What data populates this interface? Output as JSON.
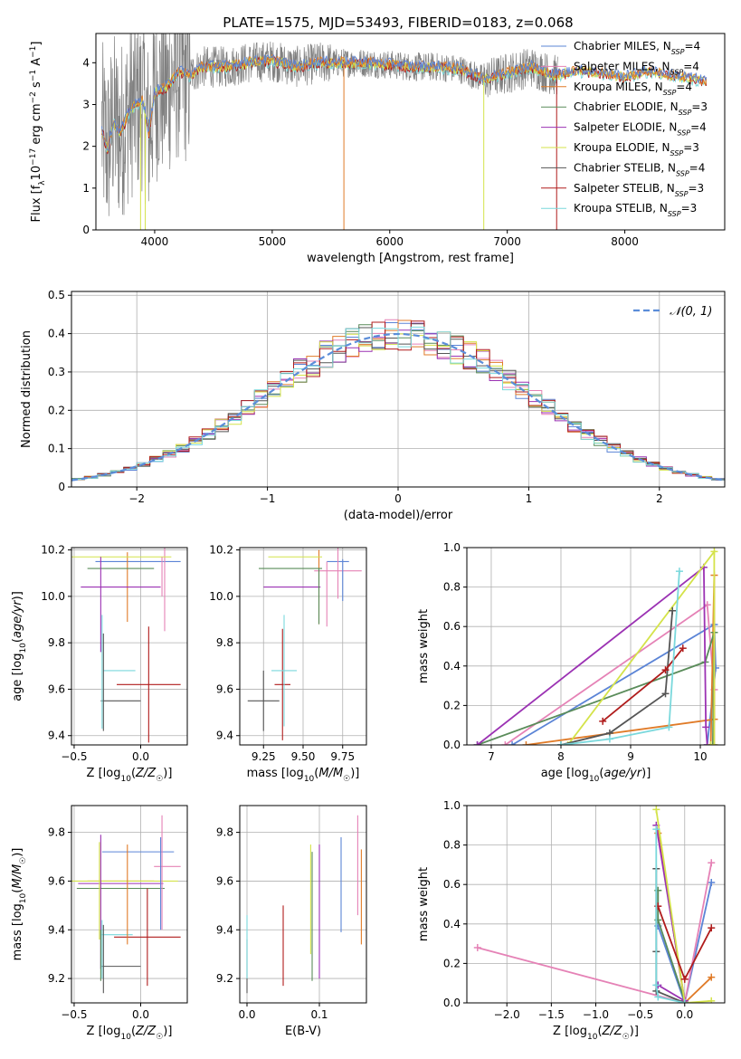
{
  "figure": {
    "title": "PLATE=1575, MJD=53493, FIBERID=0183, z=0.068"
  },
  "colors": {
    "Chabrier MILES": "#5b84d6",
    "Salpeter MILES": "#e582b6",
    "Kroupa MILES": "#e07b28",
    "Chabrier ELODIE": "#5a8c5a",
    "Salpeter ELODIE": "#9b32b3",
    "Kroupa ELODIE": "#d4e34a",
    "Chabrier STELIB": "#555555",
    "Salpeter STELIB": "#b01c1c",
    "Kroupa STELIB": "#7ad8dc",
    "data": "#808080",
    "gaussian": "#5b8dd9"
  },
  "chart_data": [
    {
      "id": "spectrum",
      "type": "line",
      "title": "PLATE=1575, MJD=53493, FIBERID=0183, z=0.068",
      "xlabel": "wavelength [Angstrom, rest frame]",
      "ylabel": "Flux [f_λ 10^-17 erg cm^-2 s^-1 A^-1]",
      "xlim": [
        3500,
        8850
      ],
      "ylim": [
        0,
        4.7
      ],
      "xticks": [
        4000,
        5000,
        6000,
        7000,
        8000
      ],
      "yticks": [
        0,
        1,
        2,
        3,
        4
      ],
      "legend_position": "top-right",
      "legend": [
        {
          "label": "Chabrier MILES, N",
          "sub": "SSP",
          "n": "=4",
          "model": "Chabrier MILES"
        },
        {
          "label": "Salpeter MILES, N",
          "sub": "SSP",
          "n": "=4",
          "model": "Salpeter MILES"
        },
        {
          "label": "Kroupa MILES, N",
          "sub": "SSP",
          "n": "=4",
          "model": "Kroupa MILES"
        },
        {
          "label": "Chabrier ELODIE, N",
          "sub": "SSP",
          "n": "=3",
          "model": "Chabrier ELODIE"
        },
        {
          "label": "Salpeter ELODIE, N",
          "sub": "SSP",
          "n": "=4",
          "model": "Salpeter ELODIE"
        },
        {
          "label": "Kroupa ELODIE, N",
          "sub": "SSP",
          "n": "=3",
          "model": "Kroupa ELODIE"
        },
        {
          "label": "Chabrier STELIB, N",
          "sub": "SSP",
          "n": "=4",
          "model": "Chabrier STELIB"
        },
        {
          "label": "Salpeter STELIB, N",
          "sub": "SSP",
          "n": "=3",
          "model": "Salpeter STELIB"
        },
        {
          "label": "Kroupa STELIB, N",
          "sub": "SSP",
          "n": "=3",
          "model": "Kroupa STELIB"
        }
      ],
      "continuum": {
        "x": [
          3550,
          3600,
          3650,
          3700,
          3800,
          3900,
          3950,
          4000,
          4100,
          4200,
          4300,
          4400,
          4600,
          4800,
          5000,
          5200,
          5400,
          5600,
          5800,
          6000,
          6200,
          6400,
          6600,
          6800,
          7000,
          7200,
          7400,
          7600,
          7800,
          8000,
          8200,
          8400,
          8600,
          8700
        ],
        "y": [
          2.4,
          1.9,
          2.6,
          2.3,
          2.9,
          3.1,
          2.3,
          3.3,
          3.4,
          3.8,
          3.7,
          3.9,
          3.9,
          4.0,
          4.05,
          3.9,
          4.0,
          4.0,
          4.0,
          3.95,
          3.9,
          3.9,
          3.85,
          3.6,
          3.75,
          3.9,
          3.7,
          3.8,
          3.75,
          3.65,
          3.8,
          3.7,
          3.6,
          3.55
        ]
      }
    },
    {
      "id": "residuals",
      "type": "area",
      "xlabel": "(data-model)/error",
      "ylabel": "Normed distribution",
      "xlim": [
        -2.5,
        2.5
      ],
      "ylim": [
        0,
        0.51
      ],
      "xticks": [
        -2,
        -1,
        0,
        1,
        2
      ],
      "yticks": [
        0,
        0.1,
        0.2,
        0.3,
        0.4,
        0.5
      ],
      "legend": [
        "𝒩(0, 1)"
      ],
      "legend_position": "top-right",
      "bin_width": 0.1,
      "bin_start": -2.5,
      "gaussian": {
        "mean": 0,
        "sigma": 1
      }
    },
    {
      "id": "age-vs-Z",
      "type": "scatter",
      "xlabel": "Z [log10(Z/Z☉)]",
      "ylabel": "age [log10(age/yr)]",
      "xlim": [
        -0.52,
        0.35
      ],
      "ylim": [
        9.36,
        10.21
      ],
      "xticks": [
        -0.5,
        0.0
      ],
      "xticklabels": [
        "−0.5",
        "0.0"
      ],
      "yticks": [
        9.4,
        9.6,
        9.8,
        10.0,
        10.2
      ],
      "yticklabels": [
        "9.4",
        "9.6",
        "9.8",
        "10.0",
        "10.2"
      ],
      "errorbars": [
        {
          "model": "Chabrier MILES",
          "x": -0.02,
          "xerr": 0.32,
          "y": 10.15,
          "yerr": 0.0
        },
        {
          "model": "Salpeter MILES",
          "x": 0.18,
          "xerr": 0.0,
          "y": 10.05,
          "yerr": 0.2
        },
        {
          "model": "Kroupa MILES",
          "x": -0.1,
          "xerr": 0.0,
          "y": 10.04,
          "yerr": 0.15
        },
        {
          "model": "Chabrier ELODIE",
          "x": -0.15,
          "xerr": 0.25,
          "y": 10.12,
          "yerr": 0.0
        },
        {
          "model": "Salpeter ELODIE",
          "x": -0.15,
          "xerr": 0.3,
          "y": 10.04,
          "yerr": 0.0
        },
        {
          "model": "Kroupa ELODIE",
          "x": -0.15,
          "xerr": 0.38,
          "y": 10.17,
          "yerr": 0.0
        },
        {
          "model": "Chabrier STELIB",
          "x": -0.15,
          "xerr": 0.15,
          "y": 9.55,
          "yerr": 0.0
        },
        {
          "model": "Salpeter STELIB",
          "x": 0.06,
          "xerr": 0.24,
          "y": 9.62,
          "yerr": 0.25
        },
        {
          "model": "Kroupa STELIB",
          "x": -0.16,
          "xerr": 0.12,
          "y": 9.68,
          "yerr": 0.0
        }
      ],
      "vbars": [
        {
          "model": "Salpeter ELODIE",
          "x": -0.3,
          "y0": 9.76,
          "y1": 10.17
        },
        {
          "model": "Kroupa STELIB",
          "x": -0.29,
          "y0": 9.43,
          "y1": 9.92
        },
        {
          "model": "Chabrier STELIB",
          "x": -0.28,
          "y0": 9.42,
          "y1": 9.84
        },
        {
          "model": "Salpeter MILES",
          "x": 0.16,
          "y0": 10.0,
          "y1": 10.17
        }
      ]
    },
    {
      "id": "age-vs-mass",
      "type": "scatter",
      "xlabel": "mass [log10(M/M☉)]",
      "ylabel": "",
      "xlim": [
        9.1,
        9.9
      ],
      "ylim": [
        9.36,
        10.21
      ],
      "xticks": [
        9.25,
        9.5,
        9.75
      ],
      "xticklabels": [
        "9.25",
        "9.50",
        "9.75"
      ],
      "yticks": [
        9.4,
        9.6,
        9.8,
        10.0,
        10.2
      ],
      "yticklabels": [
        "9.4",
        "9.6",
        "9.8",
        "10.0",
        "10.2"
      ],
      "errorbars": [
        {
          "model": "Chabrier MILES",
          "x": 9.72,
          "xerr": 0.07,
          "y": 10.15,
          "yerr": 0.0
        },
        {
          "model": "Salpeter MILES",
          "x": 9.72,
          "xerr": 0.15,
          "y": 10.11,
          "yerr": 0.12
        },
        {
          "model": "Kroupa MILES",
          "x": 9.6,
          "xerr": 0.0,
          "y": 10.04,
          "yerr": 0.16
        },
        {
          "model": "Chabrier ELODIE",
          "x": 9.42,
          "xerr": 0.2,
          "y": 10.12,
          "yerr": 0.0
        },
        {
          "model": "Salpeter ELODIE",
          "x": 9.43,
          "xerr": 0.18,
          "y": 10.04,
          "yerr": 0.0
        },
        {
          "model": "Kroupa ELODIE",
          "x": 9.45,
          "xerr": 0.17,
          "y": 10.17,
          "yerr": 0.0
        },
        {
          "model": "Chabrier STELIB",
          "x": 9.25,
          "xerr": 0.1,
          "y": 9.55,
          "yerr": 0.13
        },
        {
          "model": "Salpeter STELIB",
          "x": 9.37,
          "xerr": 0.05,
          "y": 9.62,
          "yerr": 0.24
        },
        {
          "model": "Kroupa STELIB",
          "x": 9.38,
          "xerr": 0.08,
          "y": 9.68,
          "yerr": 0.24
        }
      ],
      "vbars": [
        {
          "model": "Chabrier MILES",
          "x": 9.75,
          "y0": 9.98,
          "y1": 10.16
        },
        {
          "model": "Chabrier ELODIE",
          "x": 9.6,
          "y0": 9.88,
          "y1": 10.12
        },
        {
          "model": "Salpeter MILES",
          "x": 9.65,
          "y0": 9.87,
          "y1": 10.15
        }
      ]
    },
    {
      "id": "massweight-vs-age",
      "type": "line",
      "xlabel": "age [log10(age/yr)]",
      "ylabel": "mass weight",
      "xlim": [
        6.65,
        10.35
      ],
      "ylim": [
        0,
        1.0
      ],
      "xticks": [
        7,
        8,
        9,
        10
      ],
      "xticklabels": [
        "7",
        "8",
        "9",
        "10"
      ],
      "yticks": [
        0,
        0.2,
        0.4,
        0.6,
        0.8,
        1.0
      ],
      "yticklabels": [
        "0.0",
        "0.2",
        "0.4",
        "0.6",
        "0.8",
        "1.0"
      ],
      "series": [
        {
          "model": "Chabrier MILES",
          "x": [
            7.3,
            10.2,
            10.22,
            10.1
          ],
          "y": [
            0.0,
            0.61,
            0.39,
            0.0
          ]
        },
        {
          "model": "Salpeter MILES",
          "x": [
            7.2,
            10.1,
            10.2,
            10.2
          ],
          "y": [
            0.0,
            0.71,
            0.28,
            0.0
          ]
        },
        {
          "model": "Kroupa MILES",
          "x": [
            7.5,
            10.2,
            10.2,
            10.15
          ],
          "y": [
            0.0,
            0.13,
            0.86,
            0.0
          ]
        },
        {
          "model": "Chabrier ELODIE",
          "x": [
            6.8,
            10.07,
            10.2,
            10.18
          ],
          "y": [
            0.0,
            0.42,
            0.57,
            0.0
          ]
        },
        {
          "model": "Salpeter ELODIE",
          "x": [
            6.8,
            10.05,
            10.08,
            10.1
          ],
          "y": [
            0.0,
            0.9,
            0.09,
            0.0
          ]
        },
        {
          "model": "Kroupa ELODIE",
          "x": [
            8.1,
            10.2,
            10.2,
            10.15
          ],
          "y": [
            0.0,
            0.98,
            0.0,
            0.0
          ]
        },
        {
          "model": "Chabrier STELIB",
          "x": [
            8.0,
            8.7,
            9.5,
            9.6
          ],
          "y": [
            0.0,
            0.06,
            0.26,
            0.68
          ]
        },
        {
          "model": "Salpeter STELIB",
          "x": [
            8.6,
            9.5,
            9.75
          ],
          "y": [
            0.12,
            0.38,
            0.49
          ]
        },
        {
          "model": "Kroupa STELIB",
          "x": [
            8.0,
            8.7,
            9.55,
            9.7
          ],
          "y": [
            0.0,
            0.03,
            0.09,
            0.88
          ]
        }
      ]
    },
    {
      "id": "mass-vs-Z",
      "type": "scatter",
      "xlabel": "Z [log10(Z/Z☉)]",
      "ylabel": "mass [log10(M/M☉)]",
      "xlim": [
        -0.52,
        0.35
      ],
      "ylim": [
        9.1,
        9.91
      ],
      "xticks": [
        -0.5,
        0.0
      ],
      "xticklabels": [
        "−0.5",
        "0.0"
      ],
      "yticks": [
        9.2,
        9.4,
        9.6,
        9.8
      ],
      "yticklabels": [
        "9.2",
        "9.4",
        "9.6",
        "9.8"
      ],
      "errorbars": [
        {
          "model": "Chabrier MILES",
          "x": -0.02,
          "xerr": 0.27,
          "y": 9.72,
          "yerr": 0.0
        },
        {
          "model": "Salpeter MILES",
          "x": 0.2,
          "xerr": 0.1,
          "y": 9.66,
          "yerr": 0.0
        },
        {
          "model": "Kroupa MILES",
          "x": -0.15,
          "xerr": 0.25,
          "y": 9.6,
          "yerr": 0.0
        },
        {
          "model": "Chabrier ELODIE",
          "x": -0.15,
          "xerr": 0.33,
          "y": 9.57,
          "yerr": 0.0
        },
        {
          "model": "Salpeter ELODIE",
          "x": -0.15,
          "xerr": 0.32,
          "y": 9.59,
          "yerr": 0.0
        },
        {
          "model": "Kroupa ELODIE",
          "x": -0.15,
          "xerr": 0.43,
          "y": 9.6,
          "yerr": 0.0
        },
        {
          "model": "Chabrier STELIB",
          "x": -0.15,
          "xerr": 0.15,
          "y": 9.25,
          "yerr": 0.0
        },
        {
          "model": "Salpeter STELIB",
          "x": 0.05,
          "xerr": 0.25,
          "y": 9.37,
          "yerr": 0.2
        },
        {
          "model": "Kroupa STELIB",
          "x": -0.18,
          "xerr": 0.12,
          "y": 9.38,
          "yerr": 0.0
        }
      ],
      "vbars": [
        {
          "model": "Salpeter MILES",
          "x": 0.16,
          "y0": 9.4,
          "y1": 9.87
        },
        {
          "model": "Chabrier MILES",
          "x": 0.15,
          "y0": 9.4,
          "y1": 9.78
        },
        {
          "model": "Kroupa MILES",
          "x": -0.1,
          "y0": 9.34,
          "y1": 9.75
        },
        {
          "model": "Salpeter ELODIE",
          "x": -0.3,
          "y0": 9.24,
          "y1": 9.79
        },
        {
          "model": "Chabrier STELIB",
          "x": -0.28,
          "y0": 9.14,
          "y1": 9.42
        },
        {
          "model": "Chabrier ELODIE",
          "x": -0.3,
          "y0": 9.19,
          "y1": 9.4
        },
        {
          "model": "Kroupa STELIB",
          "x": -0.29,
          "y0": 9.2,
          "y1": 9.44
        },
        {
          "model": "Kroupa ELODIE",
          "x": -0.31,
          "y0": 9.36,
          "y1": 9.76
        }
      ]
    },
    {
      "id": "mass-vs-ebv",
      "type": "scatter",
      "xlabel": "E(B-V)",
      "ylabel": "",
      "xlim": [
        -0.01,
        0.165
      ],
      "ylim": [
        9.1,
        9.91
      ],
      "xticks": [
        0.0,
        0.1
      ],
      "xticklabels": [
        "0.0",
        "0.1"
      ],
      "yticks": [
        9.2,
        9.4,
        9.6,
        9.8
      ],
      "yticklabels": [
        "9.2",
        "9.4",
        "9.6",
        "9.8"
      ],
      "vbars": [
        {
          "model": "Chabrier STELIB",
          "x": 0.0,
          "y0": 9.14,
          "y1": 9.36
        },
        {
          "model": "Kroupa STELIB",
          "x": 0.0,
          "y0": 9.2,
          "y1": 9.46
        },
        {
          "model": "Salpeter STELIB",
          "x": 0.05,
          "y0": 9.17,
          "y1": 9.5
        },
        {
          "model": "Chabrier ELODIE",
          "x": 0.09,
          "y0": 9.19,
          "y1": 9.72
        },
        {
          "model": "Kroupa ELODIE",
          "x": 0.088,
          "y0": 9.3,
          "y1": 9.75
        },
        {
          "model": "Salpeter ELODIE",
          "x": 0.1,
          "y0": 9.2,
          "y1": 9.75
        },
        {
          "model": "Chabrier MILES",
          "x": 0.13,
          "y0": 9.39,
          "y1": 9.78
        },
        {
          "model": "Salpeter MILES",
          "x": 0.153,
          "y0": 9.46,
          "y1": 9.87
        },
        {
          "model": "Kroupa MILES",
          "x": 0.158,
          "y0": 9.34,
          "y1": 9.73
        }
      ]
    },
    {
      "id": "massweight-vs-Z",
      "type": "line",
      "xlabel": "Z [log10(Z/Z☉)]",
      "ylabel": "mass weight",
      "xlim": [
        -2.45,
        0.45
      ],
      "ylim": [
        0,
        1.0
      ],
      "xticks": [
        -2.0,
        -1.5,
        -1.0,
        -0.5,
        0.0
      ],
      "xticklabels": [
        "−2.0",
        "−1.5",
        "−1.0",
        "−0.5",
        "0.0"
      ],
      "yticks": [
        0,
        0.2,
        0.4,
        0.6,
        0.8,
        1.0
      ],
      "yticklabels": [
        "0.0",
        "0.2",
        "0.4",
        "0.6",
        "0.8",
        "1.0"
      ],
      "series": [
        {
          "model": "Chabrier MILES",
          "x": [
            -0.3,
            0.0,
            0.3
          ],
          "y": [
            0.39,
            0.0,
            0.61
          ]
        },
        {
          "model": "Salpeter MILES",
          "x": [
            -2.33,
            0.0,
            0.3
          ],
          "y": [
            0.28,
            0.0,
            0.71
          ]
        },
        {
          "model": "Kroupa MILES",
          "x": [
            -0.3,
            0.0,
            0.3
          ],
          "y": [
            0.86,
            0.0,
            0.13
          ]
        },
        {
          "model": "Chabrier ELODIE",
          "x": [
            -0.3,
            -0.3,
            0.0
          ],
          "y": [
            0.57,
            0.42,
            0.01
          ]
        },
        {
          "model": "Salpeter ELODIE",
          "x": [
            -0.32,
            0.0,
            -0.3
          ],
          "y": [
            0.9,
            0.01,
            0.09
          ]
        },
        {
          "model": "Kroupa ELODIE",
          "x": [
            -0.32,
            0.0,
            0.3
          ],
          "y": [
            0.98,
            0.0,
            0.01
          ]
        },
        {
          "model": "Chabrier STELIB",
          "x": [
            -0.32,
            -0.32,
            -0.32,
            0.0
          ],
          "y": [
            0.68,
            0.26,
            0.06,
            0.0
          ]
        },
        {
          "model": "Salpeter STELIB",
          "x": [
            -0.3,
            0.0,
            0.3
          ],
          "y": [
            0.49,
            0.12,
            0.38
          ]
        },
        {
          "model": "Kroupa STELIB",
          "x": [
            -0.32,
            -0.32,
            -0.3,
            0.0
          ],
          "y": [
            0.88,
            0.09,
            0.03,
            0.0
          ]
        }
      ]
    }
  ]
}
